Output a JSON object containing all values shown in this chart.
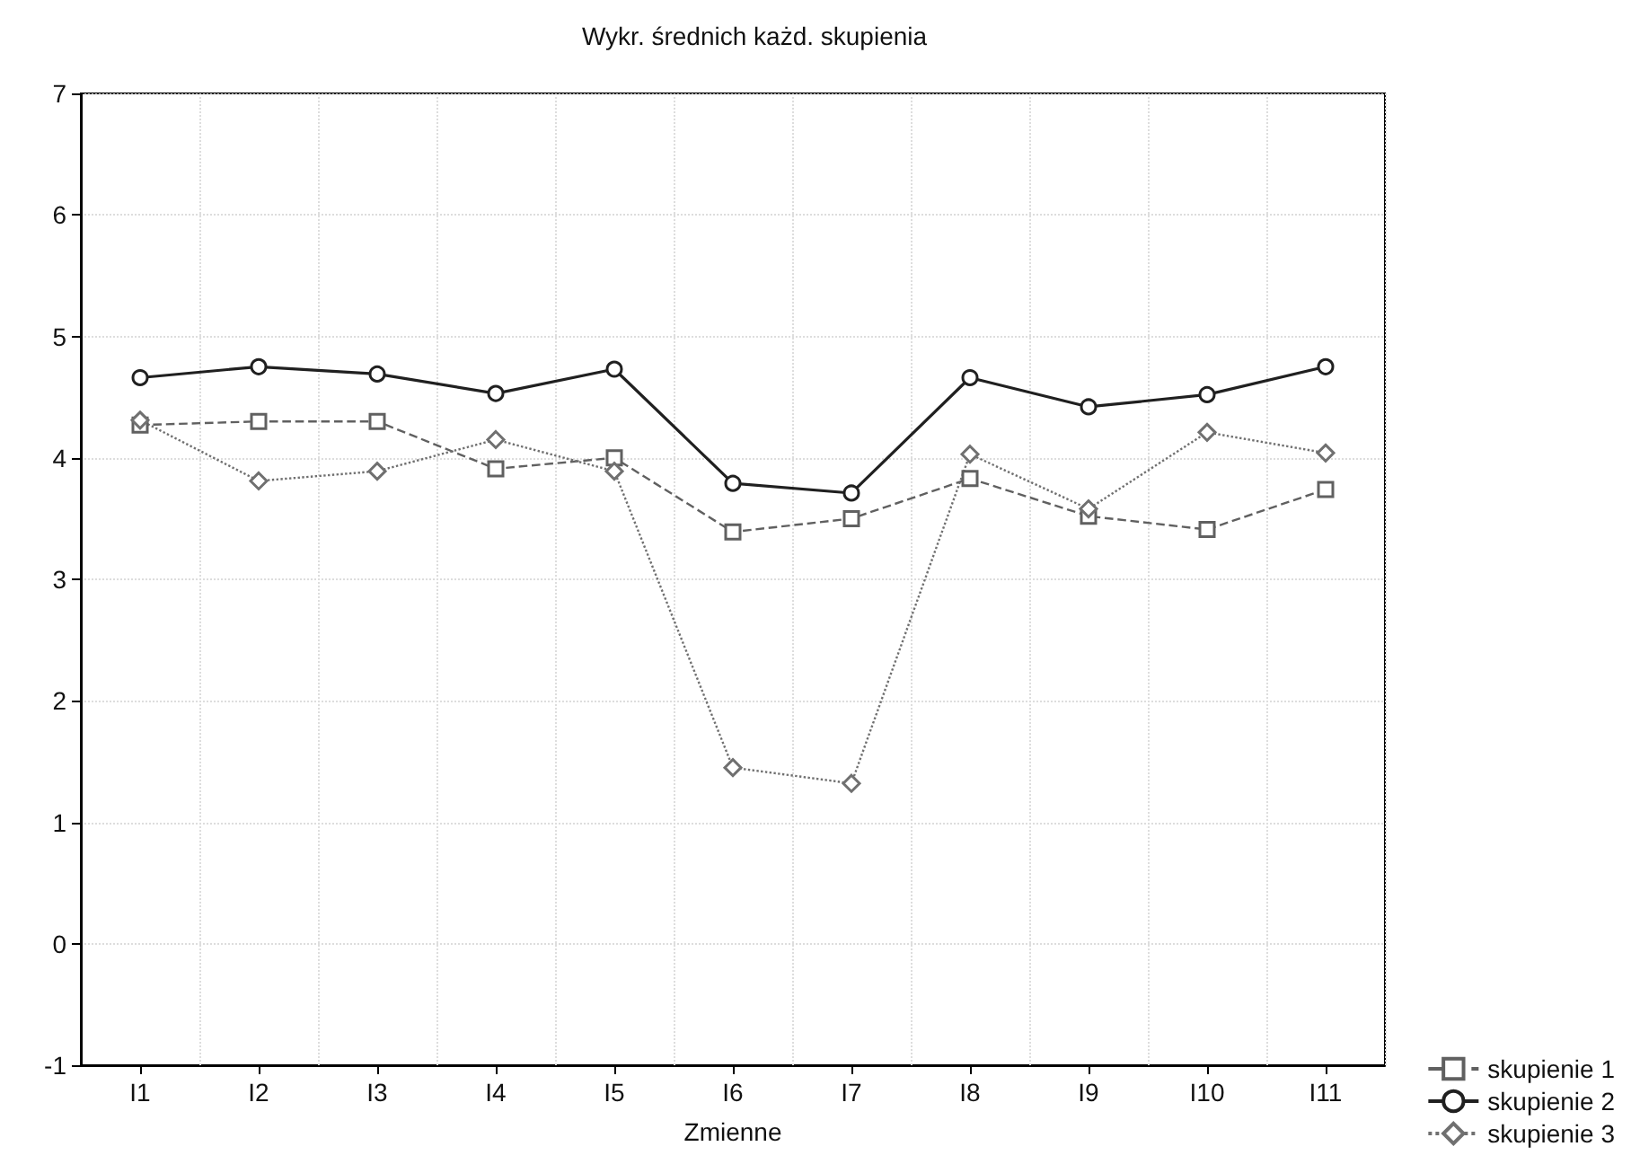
{
  "chart_data": {
    "type": "line",
    "title": "Wykr. średnich każd. skupienia",
    "xlabel": "Zmienne",
    "categories": [
      "I1",
      "I2",
      "I3",
      "I4",
      "I5",
      "I6",
      "I7",
      "I8",
      "I9",
      "I10",
      "I11"
    ],
    "series": [
      {
        "name": "skupienie 1",
        "color": "#606060",
        "marker": "square",
        "line_style": "dashed",
        "values": [
          4.27,
          4.3,
          4.3,
          3.91,
          4.0,
          3.39,
          3.5,
          3.83,
          3.52,
          3.41,
          3.74
        ]
      },
      {
        "name": "skupienie 2",
        "color": "#202020",
        "marker": "circle",
        "line_style": "solid",
        "values": [
          4.66,
          4.75,
          4.69,
          4.53,
          4.73,
          3.79,
          3.71,
          4.66,
          4.42,
          4.52,
          4.75
        ]
      },
      {
        "name": "skupienie 3",
        "color": "#707070",
        "marker": "diamond",
        "line_style": "dotted",
        "values": [
          4.31,
          3.81,
          3.89,
          4.15,
          3.89,
          1.45,
          1.32,
          4.03,
          3.58,
          4.21,
          4.04
        ]
      }
    ],
    "ylim": [
      -1,
      7
    ],
    "yticks": [
      -1,
      0,
      1,
      2,
      3,
      4,
      5,
      6,
      7
    ],
    "grid": true,
    "legend": "bottom right"
  }
}
